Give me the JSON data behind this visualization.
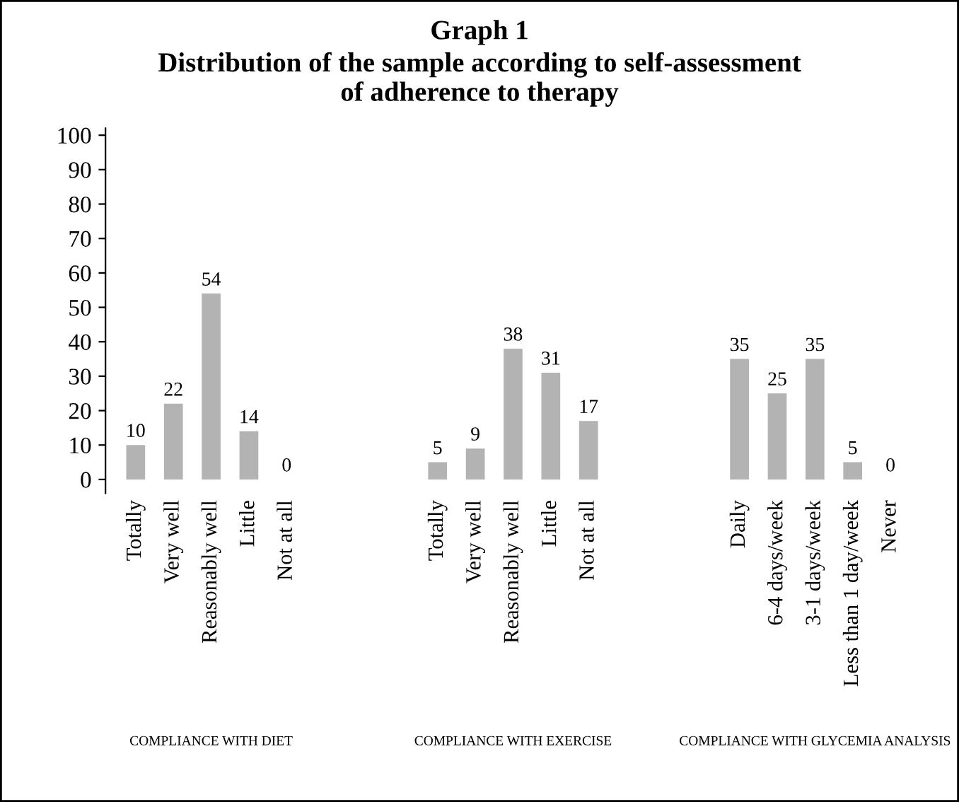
{
  "chart_data": {
    "type": "bar",
    "title": "Graph 1",
    "subtitle": "Distribution of the sample according to self-assessment\nof adherence to therapy",
    "categories": [
      "Totally",
      "Very well",
      "Reasonably well",
      "Little",
      "Not at all",
      null,
      null,
      null,
      "Totally",
      "Very well",
      "Reasonably well",
      "Little",
      "Not at all",
      null,
      null,
      null,
      "Daily",
      "6-4 days/week",
      "3-1 days/week",
      "Less than 1 day/week",
      "Never"
    ],
    "values": [
      10,
      22,
      54,
      14,
      0,
      null,
      null,
      null,
      5,
      9,
      38,
      31,
      17,
      null,
      null,
      null,
      35,
      25,
      35,
      5,
      0
    ],
    "color": "#b3b3b3",
    "ylim": [
      -4,
      102
    ],
    "yticks": [
      0,
      10,
      20,
      30,
      40,
      50,
      60,
      70,
      80,
      90,
      100
    ],
    "grid": false,
    "data_labels": true,
    "annotations": [
      "COMPLIANCE WITH DIET",
      "COMPLIANCE WITH EXERCISE",
      "COMPLIANCE WITH GLYCEMIA ANALYSIS"
    ]
  }
}
